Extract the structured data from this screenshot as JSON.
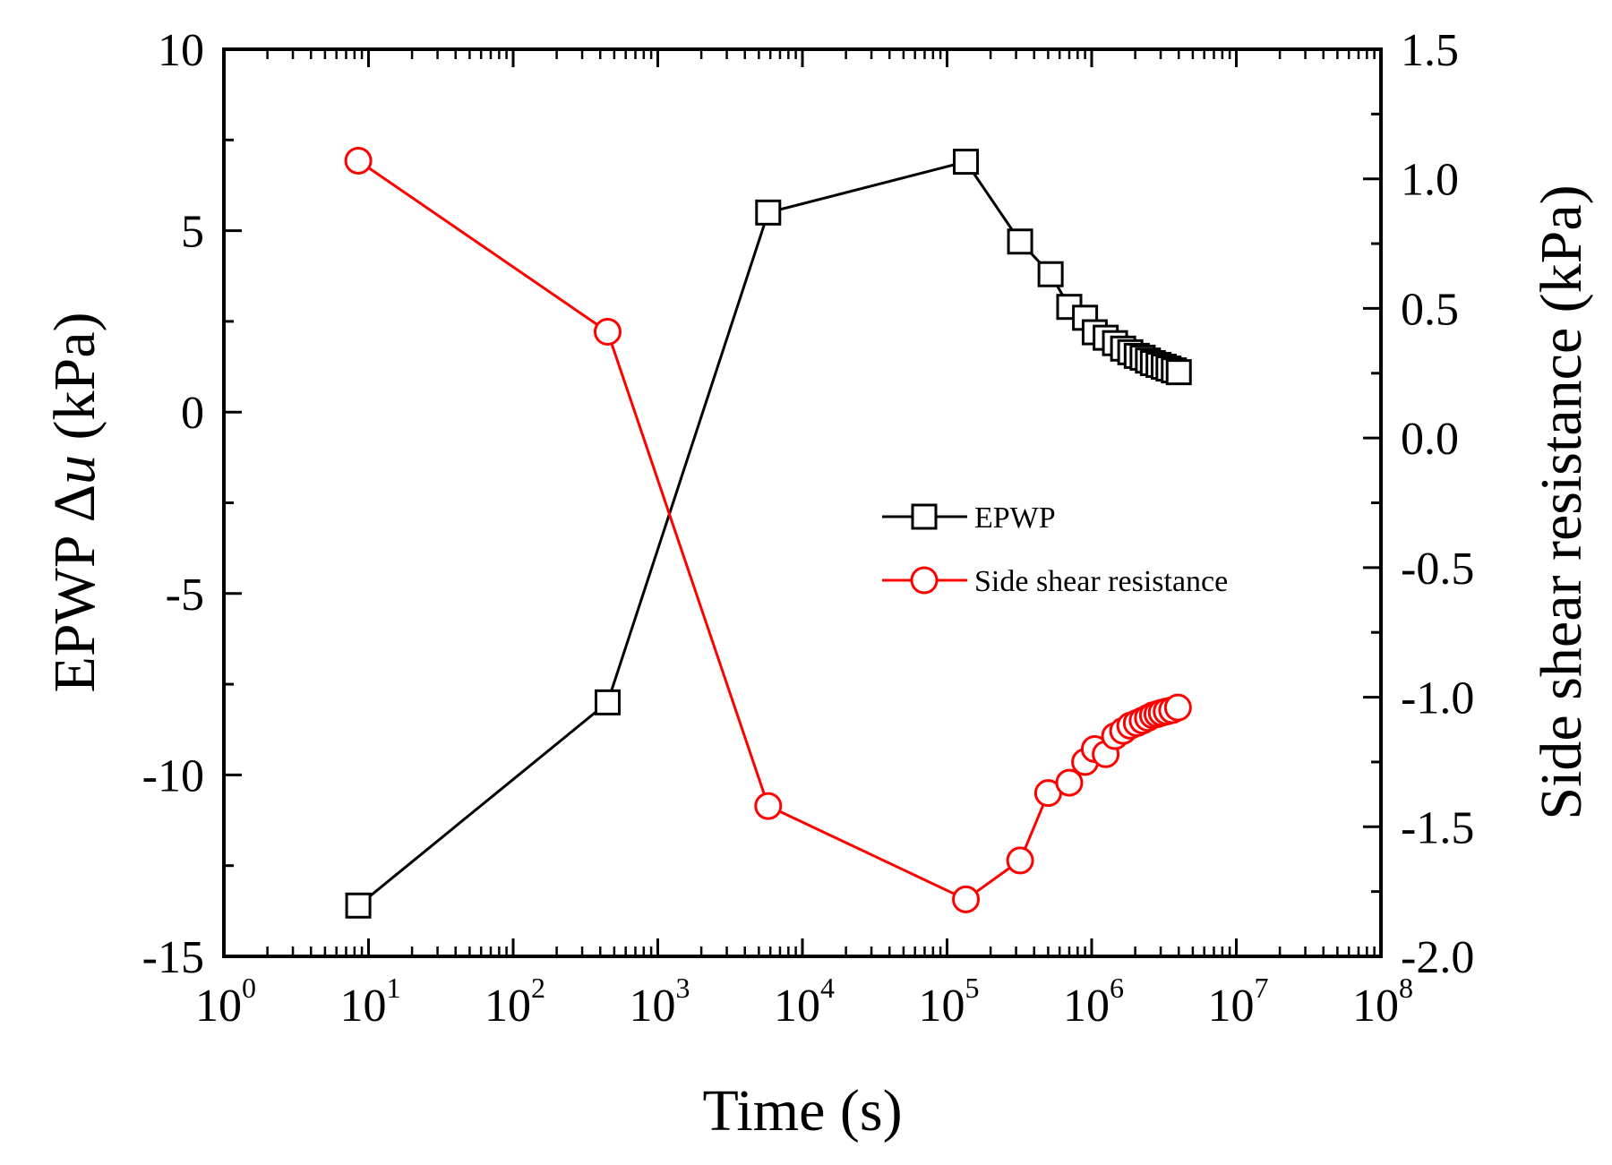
{
  "chart_data": {
    "type": "line",
    "xscale": "log",
    "xlim": [
      1,
      100000000
    ],
    "xlabel": "Time (s)",
    "ylabel_left": {
      "prefix": "EPWP ",
      "symbol": "Δ",
      "var": "u",
      "suffix": " (kPa)"
    },
    "ylabel_right": "Side shear resistance (kPa)",
    "ylim_left": [
      -15,
      10
    ],
    "ylim_right": [
      -2.0,
      1.5
    ],
    "x_ticks": [
      {
        "base": "10",
        "exp": "0"
      },
      {
        "base": "10",
        "exp": "1"
      },
      {
        "base": "10",
        "exp": "2"
      },
      {
        "base": "10",
        "exp": "3"
      },
      {
        "base": "10",
        "exp": "4"
      },
      {
        "base": "10",
        "exp": "5"
      },
      {
        "base": "10",
        "exp": "6"
      },
      {
        "base": "10",
        "exp": "7"
      },
      {
        "base": "10",
        "exp": "8"
      }
    ],
    "y_left_ticks": [
      "10",
      "5",
      "0",
      "-5",
      "-10",
      "-15"
    ],
    "y_right_ticks": [
      "1.5",
      "1.0",
      "0.5",
      "0.0",
      "-0.5",
      "-1.0",
      "-1.5",
      "-2.0"
    ],
    "legend_position": "center-right",
    "series": [
      {
        "name": "EPWP",
        "axis": "left",
        "color": "#000000",
        "marker": "square",
        "points": [
          [
            8.5,
            -13.6
          ],
          [
            450,
            -8.0
          ],
          [
            5800,
            5.5
          ],
          [
            135000,
            6.9
          ],
          [
            320000,
            4.7
          ],
          [
            520000,
            3.8
          ],
          [
            700000,
            2.9
          ],
          [
            900000,
            2.6
          ],
          [
            1050000,
            2.2
          ],
          [
            1250000,
            2.05
          ],
          [
            1450000,
            1.9
          ],
          [
            1650000,
            1.75
          ],
          [
            1850000,
            1.65
          ],
          [
            2050000,
            1.55
          ],
          [
            2250000,
            1.5
          ],
          [
            2450000,
            1.42
          ],
          [
            2650000,
            1.35
          ],
          [
            2900000,
            1.3
          ],
          [
            3150000,
            1.25
          ],
          [
            3400000,
            1.2
          ],
          [
            3700000,
            1.15
          ],
          [
            4000000,
            1.1
          ]
        ]
      },
      {
        "name": "Side shear resistance",
        "axis": "right",
        "color": "#ff0000",
        "marker": "circle",
        "points": [
          [
            8.5,
            1.07
          ],
          [
            450,
            0.41
          ],
          [
            5800,
            -1.42
          ],
          [
            135000,
            -1.78
          ],
          [
            320000,
            -1.63
          ],
          [
            500000,
            -1.37
          ],
          [
            700000,
            -1.33
          ],
          [
            900000,
            -1.25
          ],
          [
            1050000,
            -1.2
          ],
          [
            1250000,
            -1.22
          ],
          [
            1450000,
            -1.15
          ],
          [
            1650000,
            -1.13
          ],
          [
            1850000,
            -1.11
          ],
          [
            2050000,
            -1.1
          ],
          [
            2250000,
            -1.09
          ],
          [
            2450000,
            -1.08
          ],
          [
            2650000,
            -1.07
          ],
          [
            2850000,
            -1.065
          ],
          [
            3050000,
            -1.06
          ],
          [
            3300000,
            -1.055
          ],
          [
            3600000,
            -1.05
          ],
          [
            3950000,
            -1.04
          ]
        ]
      }
    ]
  }
}
